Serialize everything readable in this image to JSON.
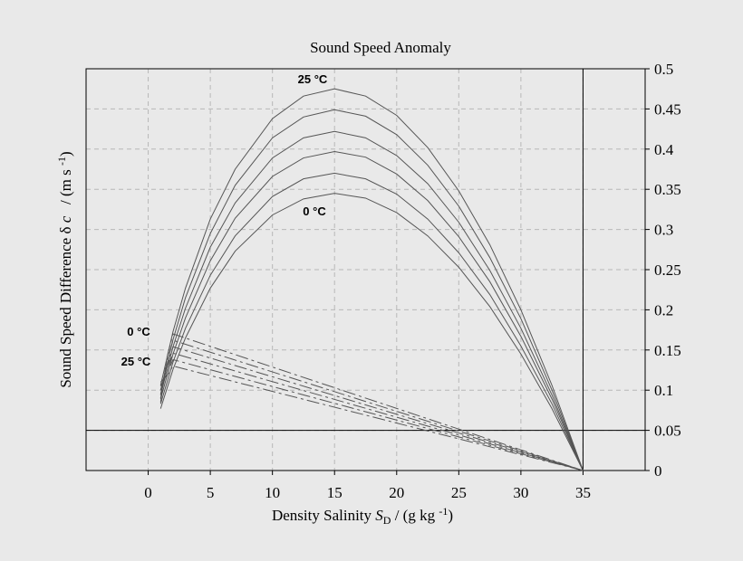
{
  "chart_data": {
    "type": "line",
    "title": "Sound Speed Anomaly",
    "xlabel_parts": [
      "Density Salinity ",
      "S",
      "D",
      " / (g kg ",
      "-1",
      ")"
    ],
    "ylabel_parts": [
      "Sound Speed Difference δ ",
      "c",
      "   / (m s ",
      "-1",
      ")"
    ],
    "xlim": [
      -5,
      40
    ],
    "ylim": [
      0,
      0.5
    ],
    "xticks": [
      0,
      5,
      10,
      15,
      20,
      25,
      30,
      35
    ],
    "yticks": [
      0,
      0.05,
      0.1,
      0.15,
      0.2,
      0.25,
      0.3,
      0.35,
      0.4,
      0.45,
      0.5
    ],
    "grid": true,
    "hlines": [
      0.05
    ],
    "vlines": [
      35
    ],
    "annotations": [
      "25 °C",
      "0 °C",
      "0 °C",
      "25 °C"
    ],
    "series": [
      {
        "color": "#555555",
        "dashed": false,
        "x": [
          1,
          2,
          3,
          5,
          7,
          10,
          12.5,
          15,
          17.5,
          20,
          22.5,
          25,
          27.5,
          30,
          32.5,
          35
        ],
        "values": [
          0.077,
          0.126,
          0.165,
          0.227,
          0.273,
          0.318,
          0.338,
          0.345,
          0.339,
          0.321,
          0.292,
          0.253,
          0.204,
          0.145,
          0.077,
          0
        ]
      },
      {
        "color": "#555555",
        "dashed": false,
        "x": [
          1,
          2,
          3,
          5,
          7,
          10,
          12.5,
          15,
          17.5,
          20,
          22.5,
          25,
          27.5,
          30,
          32.5,
          35
        ],
        "values": [
          0.083,
          0.135,
          0.177,
          0.243,
          0.292,
          0.341,
          0.363,
          0.37,
          0.363,
          0.344,
          0.313,
          0.271,
          0.219,
          0.155,
          0.083,
          0
        ]
      },
      {
        "color": "#555555",
        "dashed": false,
        "x": [
          1,
          2,
          3,
          5,
          7,
          10,
          12.5,
          15,
          17.5,
          20,
          22.5,
          25,
          27.5,
          30,
          32.5,
          35
        ],
        "values": [
          0.089,
          0.145,
          0.19,
          0.261,
          0.314,
          0.366,
          0.389,
          0.397,
          0.39,
          0.369,
          0.336,
          0.291,
          0.235,
          0.167,
          0.089,
          0
        ]
      },
      {
        "color": "#555555",
        "dashed": false,
        "x": [
          1,
          2,
          3,
          5,
          7,
          10,
          12.5,
          15,
          17.5,
          20,
          22.5,
          25,
          27.5,
          30,
          32.5,
          35
        ],
        "values": [
          0.094,
          0.154,
          0.202,
          0.278,
          0.333,
          0.389,
          0.414,
          0.422,
          0.414,
          0.392,
          0.357,
          0.309,
          0.249,
          0.177,
          0.094,
          0
        ]
      },
      {
        "color": "#555555",
        "dashed": false,
        "x": [
          1,
          2,
          3,
          5,
          7,
          10,
          12.5,
          15,
          17.5,
          20,
          22.5,
          25,
          27.5,
          30,
          32.5,
          35
        ],
        "values": [
          0.1,
          0.163,
          0.215,
          0.295,
          0.355,
          0.414,
          0.44,
          0.449,
          0.441,
          0.418,
          0.38,
          0.329,
          0.265,
          0.189,
          0.1,
          0
        ]
      },
      {
        "color": "#555555",
        "dashed": false,
        "x": [
          1,
          2,
          3,
          5,
          7,
          10,
          12.5,
          15,
          17.5,
          20,
          22.5,
          25,
          27.5,
          30,
          32.5,
          35
        ],
        "values": [
          0.106,
          0.173,
          0.227,
          0.313,
          0.375,
          0.438,
          0.466,
          0.475,
          0.466,
          0.442,
          0.402,
          0.348,
          0.281,
          0.2,
          0.106,
          0
        ]
      },
      {
        "color": "#555555",
        "dashed": true,
        "x": [
          1,
          1.5,
          2,
          35
        ],
        "values": [
          0.085,
          0.14,
          0.17,
          0
        ]
      },
      {
        "color": "#555555",
        "dashed": true,
        "x": [
          1,
          1.5,
          2,
          35
        ],
        "values": [
          0.09,
          0.135,
          0.162,
          0
        ]
      },
      {
        "color": "#555555",
        "dashed": true,
        "x": [
          1,
          1.5,
          2,
          35
        ],
        "values": [
          0.095,
          0.13,
          0.154,
          0
        ]
      },
      {
        "color": "#555555",
        "dashed": true,
        "x": [
          1,
          1.5,
          2,
          35
        ],
        "values": [
          0.1,
          0.125,
          0.146,
          0
        ]
      },
      {
        "color": "#555555",
        "dashed": true,
        "x": [
          1,
          1.5,
          2,
          35
        ],
        "values": [
          0.105,
          0.12,
          0.138,
          0
        ]
      },
      {
        "color": "#555555",
        "dashed": true,
        "x": [
          1,
          1.5,
          2,
          35
        ],
        "values": [
          0.11,
          0.118,
          0.13,
          0
        ]
      }
    ]
  }
}
